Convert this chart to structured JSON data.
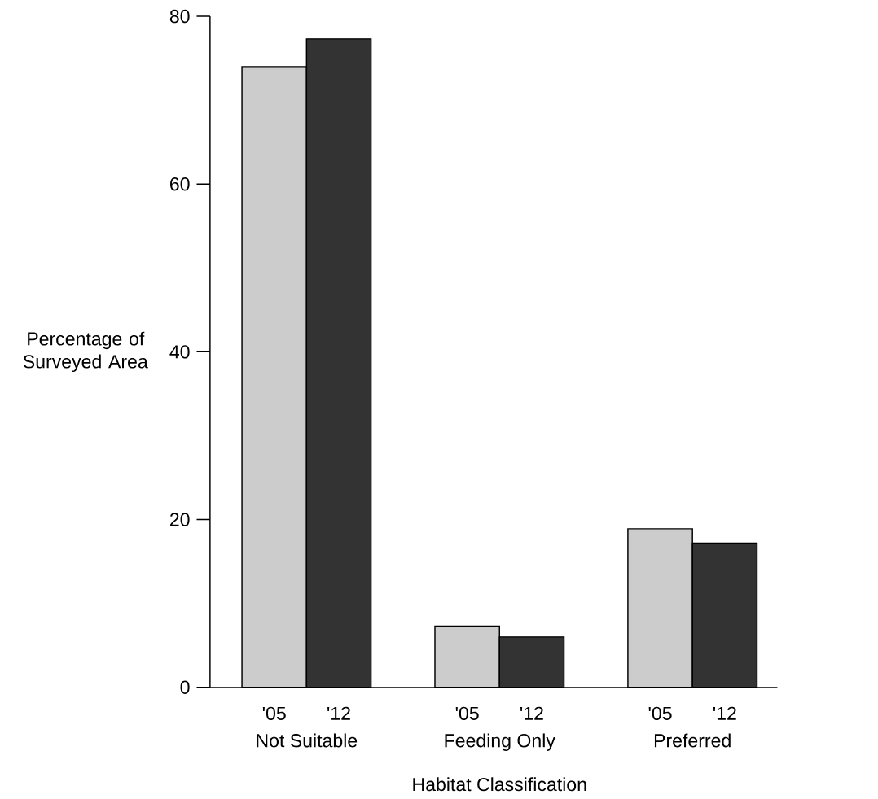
{
  "chart_data": {
    "type": "bar",
    "xlabel": "Habitat Classification",
    "ylabel": "Percentage of Surveyed Area",
    "categories": [
      "Not Suitable",
      "Feeding Only",
      "Preferred"
    ],
    "series": [
      {
        "name": "'05",
        "color": "#cccccc",
        "values": [
          74.0,
          7.3,
          18.9
        ]
      },
      {
        "name": "'12",
        "color": "#333333",
        "values": [
          77.3,
          6.0,
          17.2
        ]
      }
    ],
    "ylim": [
      0,
      80
    ],
    "yticks": [
      0,
      20,
      40,
      60,
      80
    ]
  }
}
